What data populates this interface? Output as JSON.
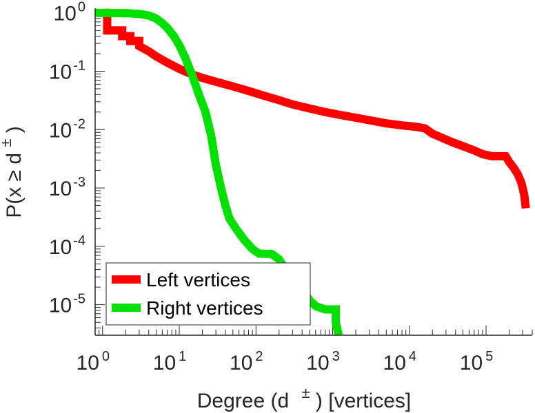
{
  "chart_data": {
    "type": "line",
    "scale": "log-log",
    "xlabel": {
      "prefix": "Degree (d",
      "sup": "±",
      "suffix": ") [vertices]"
    },
    "ylabel": {
      "prefix": "P(x ≥ d",
      "sup": "±",
      "suffix": ")"
    },
    "xlim": [
      0.8,
      400000
    ],
    "ylim": [
      3e-06,
      1.2
    ],
    "x_ticks": [
      {
        "value": 1,
        "base": "10",
        "exp": "0"
      },
      {
        "value": 10,
        "base": "10",
        "exp": "1"
      },
      {
        "value": 100,
        "base": "10",
        "exp": "2"
      },
      {
        "value": 1000,
        "base": "10",
        "exp": "3"
      },
      {
        "value": 10000,
        "base": "10",
        "exp": "4"
      },
      {
        "value": 100000,
        "base": "10",
        "exp": "5"
      }
    ],
    "y_ticks": [
      {
        "value": 1,
        "base": "10",
        "exp": "0"
      },
      {
        "value": 0.1,
        "base": "10",
        "exp": "-1"
      },
      {
        "value": 0.01,
        "base": "10",
        "exp": "-2"
      },
      {
        "value": 0.001,
        "base": "10",
        "exp": "-3"
      },
      {
        "value": 0.0001,
        "base": "10",
        "exp": "-4"
      },
      {
        "value": 1e-05,
        "base": "10",
        "exp": "-5"
      }
    ],
    "legend": {
      "position": "bottom-left"
    },
    "series": [
      {
        "name": "Left vertices",
        "color": "#ff0000",
        "points": [
          [
            1.0,
            1.0
          ],
          [
            1.15,
            1.0
          ],
          [
            1.15,
            0.5
          ],
          [
            1.8,
            0.5
          ],
          [
            1.8,
            0.4
          ],
          [
            2.3,
            0.4
          ],
          [
            2.3,
            0.33
          ],
          [
            3,
            0.33
          ],
          [
            3,
            0.27
          ],
          [
            4,
            0.22
          ],
          [
            5,
            0.18
          ],
          [
            7,
            0.14
          ],
          [
            10,
            0.11
          ],
          [
            15,
            0.087
          ],
          [
            20,
            0.077
          ],
          [
            30,
            0.066
          ],
          [
            50,
            0.055
          ],
          [
            80,
            0.046
          ],
          [
            120,
            0.039
          ],
          [
            200,
            0.032
          ],
          [
            300,
            0.027
          ],
          [
            500,
            0.023
          ],
          [
            800,
            0.02
          ],
          [
            1200,
            0.018
          ],
          [
            2000,
            0.016
          ],
          [
            3000,
            0.0145
          ],
          [
            5000,
            0.0128
          ],
          [
            8000,
            0.0118
          ],
          [
            12000,
            0.0112
          ],
          [
            16000,
            0.0105
          ],
          [
            20000,
            0.0085
          ],
          [
            25000,
            0.0075
          ],
          [
            35000,
            0.0062
          ],
          [
            50000,
            0.0052
          ],
          [
            70000,
            0.0044
          ],
          [
            90000,
            0.0038
          ],
          [
            120000,
            0.0035
          ],
          [
            180000,
            0.0035
          ],
          [
            200000,
            0.0028
          ],
          [
            230000,
            0.0022
          ],
          [
            260000,
            0.0017
          ],
          [
            290000,
            0.0012
          ],
          [
            315000,
            0.00075
          ],
          [
            330000,
            0.00045
          ]
        ]
      },
      {
        "name": "Right vertices",
        "color": "#00e000",
        "points": [
          [
            0.8,
            1.0
          ],
          [
            2.0,
            0.99
          ],
          [
            3.0,
            0.96
          ],
          [
            4.0,
            0.9
          ],
          [
            5.0,
            0.8
          ],
          [
            6.0,
            0.67
          ],
          [
            7.0,
            0.55
          ],
          [
            8.5,
            0.4
          ],
          [
            10,
            0.28
          ],
          [
            12,
            0.17
          ],
          [
            15,
            0.08
          ],
          [
            18,
            0.04
          ],
          [
            22,
            0.02
          ],
          [
            26,
            0.008
          ],
          [
            30,
            0.0025
          ],
          [
            35,
            0.001
          ],
          [
            40,
            0.0005
          ],
          [
            45,
            0.0003
          ],
          [
            55,
            0.0002
          ],
          [
            70,
            0.00013
          ],
          [
            90,
            9e-05
          ],
          [
            110,
            7.5e-05
          ],
          [
            160,
            7.4e-05
          ],
          [
            200,
            6e-05
          ],
          [
            230,
            4.5e-05
          ],
          [
            300,
            3e-05
          ],
          [
            400,
            1.8e-05
          ],
          [
            500,
            1.2e-05
          ],
          [
            600,
            9.5e-06
          ],
          [
            800,
            8.3e-06
          ],
          [
            1100,
            8.3e-06
          ],
          [
            1100,
            5e-06
          ],
          [
            1200,
            3e-06
          ]
        ]
      }
    ]
  }
}
